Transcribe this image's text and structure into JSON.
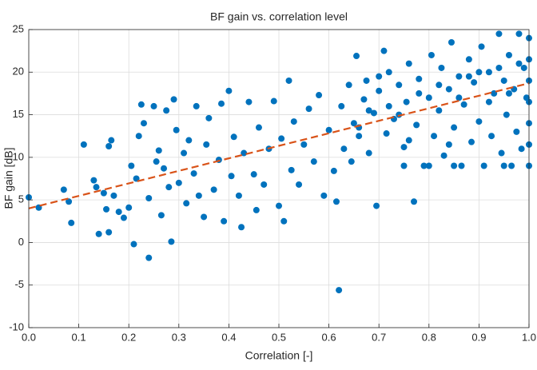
{
  "chart_data": {
    "type": "scatter",
    "title": "BF gain vs. correlation level",
    "xlabel": "Correlation [-]",
    "ylabel": "BF gain [dB]",
    "xlim": [
      0,
      1
    ],
    "ylim": [
      -10,
      25
    ],
    "xticks": [
      {
        "value": 0,
        "label": "0.0"
      },
      0.1,
      0.2,
      0.3,
      0.4,
      0.5,
      0.6,
      0.7,
      0.8,
      0.9,
      {
        "value": 1,
        "label": "1.0"
      }
    ],
    "yticks": [
      -10,
      -5,
      0,
      5,
      10,
      15,
      20,
      25
    ],
    "grid": true,
    "series": [
      {
        "type": "scatter",
        "color": "#0072bd",
        "x": [
          0.0,
          0.02,
          0.07,
          0.08,
          0.085,
          0.11,
          0.13,
          0.135,
          0.14,
          0.15,
          0.155,
          0.16,
          0.16,
          0.165,
          0.17,
          0.18,
          0.19,
          0.2,
          0.205,
          0.21,
          0.215,
          0.22,
          0.225,
          0.23,
          0.24,
          0.24,
          0.25,
          0.255,
          0.26,
          0.265,
          0.27,
          0.275,
          0.28,
          0.285,
          0.29,
          0.295,
          0.3,
          0.31,
          0.315,
          0.32,
          0.33,
          0.335,
          0.34,
          0.35,
          0.355,
          0.36,
          0.37,
          0.38,
          0.385,
          0.39,
          0.4,
          0.405,
          0.41,
          0.42,
          0.425,
          0.43,
          0.44,
          0.45,
          0.455,
          0.46,
          0.47,
          0.48,
          0.49,
          0.5,
          0.505,
          0.51,
          0.52,
          0.525,
          0.53,
          0.54,
          0.55,
          0.56,
          0.57,
          0.58,
          0.59,
          0.6,
          0.61,
          0.615,
          0.62,
          0.625,
          0.63,
          0.64,
          0.645,
          0.65,
          0.655,
          0.66,
          0.67,
          0.675,
          0.68,
          0.69,
          0.695,
          0.7,
          0.71,
          0.715,
          0.72,
          0.73,
          0.74,
          0.75,
          0.755,
          0.76,
          0.77,
          0.775,
          0.78,
          0.79,
          0.8,
          0.805,
          0.81,
          0.82,
          0.825,
          0.83,
          0.84,
          0.845,
          0.85,
          0.86,
          0.865,
          0.87,
          0.88,
          0.885,
          0.89,
          0.9,
          0.905,
          0.91,
          0.92,
          0.925,
          0.93,
          0.94,
          0.945,
          0.95,
          0.955,
          0.96,
          0.965,
          0.97,
          0.975,
          0.98,
          0.985,
          0.99,
          1.0,
          1.0,
          1.0,
          1.0,
          1.0,
          1.0,
          1.0,
          0.995,
          0.7,
          0.72,
          0.74,
          0.78,
          0.82,
          0.86,
          0.88,
          0.92,
          0.94,
          0.96,
          0.98,
          0.66,
          0.68,
          0.76,
          0.84,
          0.9,
          0.8,
          0.85,
          0.95,
          0.75
        ],
        "values": [
          5.3,
          4.1,
          6.2,
          4.8,
          2.3,
          11.5,
          7.3,
          6.5,
          1.0,
          5.8,
          3.9,
          1.2,
          11.3,
          12.0,
          5.5,
          3.6,
          2.9,
          4.1,
          9.0,
          -0.2,
          7.5,
          12.5,
          16.2,
          14.0,
          -1.8,
          5.2,
          16.0,
          9.5,
          10.8,
          3.2,
          8.7,
          15.5,
          6.5,
          0.1,
          16.8,
          13.2,
          7.0,
          10.5,
          4.6,
          12.0,
          8.1,
          16.0,
          5.5,
          3.0,
          11.5,
          14.6,
          6.2,
          9.7,
          16.3,
          2.5,
          17.8,
          7.8,
          12.4,
          5.5,
          1.8,
          10.5,
          16.5,
          8.0,
          3.8,
          13.5,
          6.8,
          11.0,
          16.6,
          4.3,
          12.2,
          2.5,
          19.0,
          8.5,
          14.2,
          6.8,
          11.5,
          15.7,
          9.5,
          17.3,
          5.5,
          13.2,
          8.4,
          4.8,
          -5.6,
          16.0,
          11.0,
          18.5,
          9.5,
          14.0,
          21.9,
          12.5,
          16.8,
          19.0,
          10.5,
          15.2,
          4.3,
          17.8,
          22.5,
          12.8,
          20.0,
          14.5,
          18.5,
          11.2,
          16.5,
          21.0,
          4.8,
          13.8,
          19.2,
          9.0,
          17.0,
          22.0,
          12.5,
          15.5,
          20.5,
          10.2,
          18.0,
          23.5,
          13.5,
          19.5,
          9.0,
          16.2,
          21.5,
          11.8,
          18.8,
          14.2,
          23.0,
          9.0,
          20.0,
          12.5,
          17.5,
          24.5,
          10.5,
          19.0,
          15.0,
          22.0,
          9.0,
          18.0,
          13.0,
          24.5,
          11.0,
          20.5,
          9.0,
          11.5,
          14.0,
          16.5,
          19.0,
          21.5,
          24.0,
          17.0,
          19.5,
          16.0,
          15.0,
          17.5,
          18.5,
          17.0,
          19.5,
          16.5,
          20.5,
          17.5,
          21.0,
          13.5,
          15.5,
          12.0,
          11.5,
          20.0,
          9.0,
          9.0,
          9.0,
          9.0
        ]
      },
      {
        "type": "line",
        "color": "#d95319",
        "dashed": true,
        "x": [
          0,
          1
        ],
        "values": [
          4.0,
          18.7
        ]
      }
    ]
  }
}
